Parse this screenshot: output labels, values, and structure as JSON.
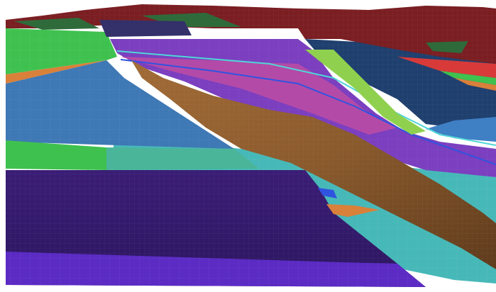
{
  "scene": {
    "type": "3d-geological-horizon-model",
    "background_color": "#ffffff",
    "layers": [
      {
        "name": "top-surface-red",
        "color": "#7a1e22"
      },
      {
        "name": "top-surface-green",
        "color": "#2f6b3a"
      },
      {
        "name": "purple-stack",
        "color": "#7b3fbf"
      },
      {
        "name": "magenta-stack",
        "color": "#b44aa8"
      },
      {
        "name": "lime-band",
        "color": "#8fd14f"
      },
      {
        "name": "green-band",
        "color": "#3fc14f"
      },
      {
        "name": "steel-blue-surface",
        "color": "#3e78b5"
      },
      {
        "name": "navy-surface",
        "color": "#1f3f6e"
      },
      {
        "name": "fault-surface-brown",
        "color": "#8b5a2b"
      },
      {
        "name": "cyan-surface",
        "color": "#47b8b8"
      },
      {
        "name": "dark-purple-basal-surface",
        "color": "#3a1d75"
      },
      {
        "name": "violet-basal-edge",
        "color": "#5b2bc4"
      },
      {
        "name": "orange-band",
        "color": "#d9803a"
      }
    ],
    "grid_overlay": true
  }
}
